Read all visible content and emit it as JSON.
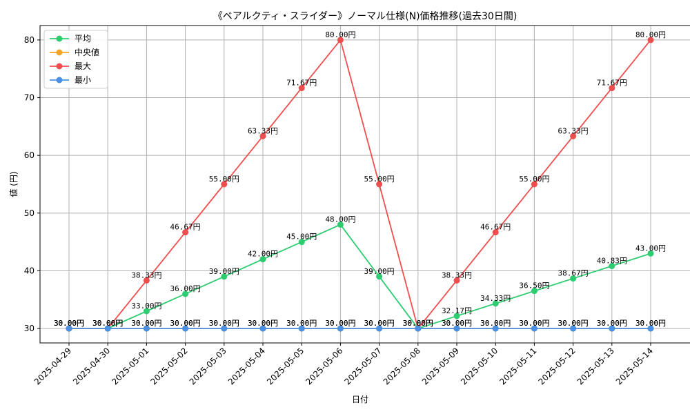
{
  "chart_data": {
    "type": "line",
    "title": "《ベアルクティ・スライダー》ノーマル仕様(N)価格推移(過去30日間)",
    "xlabel": "日付",
    "ylabel": "値 (円)",
    "ylim": [
      27.5,
      82.5
    ],
    "yticks": [
      30,
      40,
      50,
      60,
      70,
      80
    ],
    "grid": true,
    "legend_position": "top-left",
    "categories": [
      "2025-04-29",
      "2025-04-30",
      "2025-05-01",
      "2025-05-02",
      "2025-05-03",
      "2025-05-04",
      "2025-05-05",
      "2025-05-06",
      "2025-05-07",
      "2025-05-08",
      "2025-05-09",
      "2025-05-10",
      "2025-05-11",
      "2025-05-12",
      "2025-05-13",
      "2025-05-14"
    ],
    "series": [
      {
        "name": "平均",
        "color": "#2ecc71",
        "values": [
          30,
          30,
          33,
          36,
          39,
          42,
          45,
          48,
          39,
          30,
          32.17,
          34.33,
          36.5,
          38.67,
          40.83,
          43
        ],
        "labels": [
          "30.00円",
          "30.00円",
          "33.00円",
          "36.00円",
          "39.00円",
          "42.00円",
          "45.00円",
          "48.00円",
          "39.00円",
          "30.00円",
          "32.17円",
          "34.33円",
          "36.50円",
          "38.67円",
          "40.83円",
          "43.00円"
        ]
      },
      {
        "name": "中央値",
        "color": "#f5a623",
        "values": [
          30,
          30,
          30,
          30,
          30,
          30,
          30,
          30,
          30,
          30,
          30,
          30,
          30,
          30,
          30,
          30
        ],
        "labels": [
          "30.00円",
          "30.00円",
          "30.00円",
          "30.00円",
          "30.00円",
          "30.00円",
          "30.00円",
          "30.00円",
          "30.00円",
          "30.00円",
          "30.00円",
          "30.00円",
          "30.00円",
          "30.00円",
          "30.00円",
          "30.00円"
        ]
      },
      {
        "name": "最大",
        "color": "#f04e4e",
        "values": [
          30,
          30,
          38.33,
          46.67,
          55,
          63.33,
          71.67,
          80,
          55,
          30,
          38.33,
          46.67,
          55,
          63.33,
          71.67,
          80
        ],
        "labels": [
          "30.00円",
          "30.00円",
          "38.33円",
          "46.67円",
          "55.00円",
          "63.33円",
          "71.67円",
          "80.00円",
          "55.00円",
          "30.00円",
          "38.33円",
          "46.67円",
          "55.00円",
          "63.33円",
          "71.67円",
          "80.00円"
        ]
      },
      {
        "name": "最小",
        "color": "#4a90e2",
        "values": [
          30,
          30,
          30,
          30,
          30,
          30,
          30,
          30,
          30,
          30,
          30,
          30,
          30,
          30,
          30,
          30
        ],
        "labels": [
          "30.00円",
          "30.00円",
          "30.00円",
          "30.00円",
          "30.00円",
          "30.00円",
          "30.00円",
          "30.00円",
          "30.00円",
          "30.00円",
          "30.00円",
          "30.00円",
          "30.00円",
          "30.00円",
          "30.00円",
          "30.00円"
        ]
      }
    ]
  }
}
